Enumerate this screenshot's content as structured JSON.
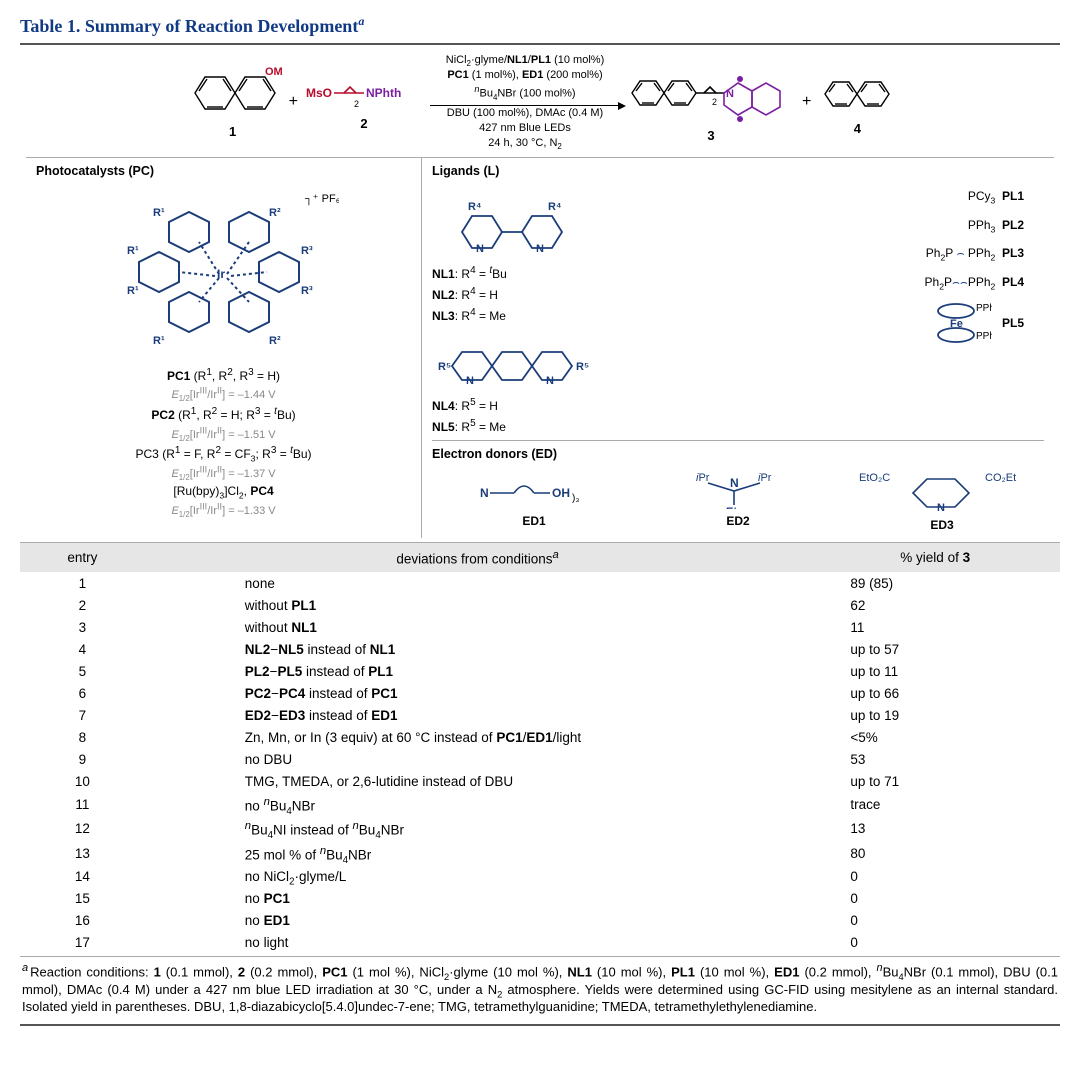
{
  "title_html": "Table 1. Summary of Reaction Development<sup><i>a</i></sup>",
  "reaction": {
    "conditions": [
      "NiCl<sub>2</sub>·glyme/<b>NL1</b>/<b>PL1</b> (10 mol%)",
      "<b>PC1</b> (1 mol%), <b>ED1</b> (200 mol%)",
      "<sup><i>n</i></sup>Bu<sub>4</sub>NBr (100 mol%)",
      "DBU (100 mol%), DMAc (0.4 M)",
      "427 nm Blue LEDs",
      "24 h, 30 °C, N<sub>2</sub>"
    ],
    "labels": {
      "sm1": "1",
      "sm2": "2",
      "prod": "3",
      "byp": "4"
    }
  },
  "photocatalysts": {
    "title": "Photocatalysts (PC)",
    "entries": [
      "<b>PC1</b> (R<sup>1</sup>, R<sup>2</sup>, R<sup>3</sup> = H)",
      "<span class='grey'><i>E</i><sub>1/2</sub>[Ir<sup>III</sup>/Ir<sup>II</sup>] = –1.44 V</span>",
      "<b>PC2</b> (R<sup>1</sup>, R<sup>2</sup> = H; R<sup>3</sup> = <sup><i>t</i></sup>Bu)",
      "<span class='grey'><i>E</i><sub>1/2</sub>[Ir<sup>III</sup>/Ir<sup>II</sup>] = –1.51 V</span>",
      "PC3 (R<sup>1</sup> = F, R<sup>2</sup> = CF<sub>3</sub>; R<sup>3</sup> = <sup><i>t</i></sup>Bu)",
      "<span class='grey'><i>E</i><sub>1/2</sub>[Ir<sup>III</sup>/Ir<sup>II</sup>] = –1.37 V</span>",
      "[Ru(bpy)<sub>3</sub>]Cl<sub>2</sub>, <b>PC4</b>",
      "<span class='grey'><i>E</i><sub>1/2</sub>[Ir<sup>III</sup>/Ir<sup>II</sup>] = –1.33 V</span>"
    ]
  },
  "ligands": {
    "title": "Ligands (L)",
    "n_ligands": [
      "<b>NL1</b>: R<sup>4</sup> = <sup><i>t</i></sup>Bu",
      "<b>NL2</b>: R<sup>4</sup> = H",
      "<b>NL3</b>: R<sup>4</sup> = Me",
      "<b>NL4</b>: R<sup>5</sup> = H",
      "<b>NL5</b>: R<sup>5</sup> = Me"
    ],
    "p_ligands": [
      "PCy<sub>3</sub> &nbsp;<b>PL1</b>",
      "PPh<sub>3</sub> &nbsp;<b>PL2</b>",
      "Ph<sub>2</sub>P&nbsp;<span class='dd'>⌢</span>&nbsp;PPh<sub>2</sub> &nbsp;<b>PL3</b>",
      "Ph<sub>2</sub>P<span class='dd'>⌢⌢</span>PPh<sub>2</sub> &nbsp;<b>PL4</b>",
      "<span class='dd'>(Fc)</span>(PPh<sub>2</sub>)<sub>2</sub> &nbsp;<b>PL5</b>"
    ]
  },
  "electron_donors": {
    "title": "Electron donors (ED)",
    "items": [
      {
        "formula": "N(⁀OH)<sub>3</sub>",
        "label": "ED1"
      },
      {
        "formula": "<sup><i>i</i></sup>Pr–N(Et)–<sup><i>i</i></sup>Pr",
        "label": "ED2"
      },
      {
        "formula": "EtO<sub>2</sub>C⌢N(H)⌢CO<sub>2</sub>Et",
        "label": "ED3"
      }
    ]
  },
  "table": {
    "headers": [
      "entry",
      "deviations from conditions<sup><i>a</i></sup>",
      "% yield of <b>3</b>"
    ],
    "rows": [
      {
        "entry": "1",
        "dev": "none",
        "yld": "89 (85)"
      },
      {
        "entry": "2",
        "dev": "without <b>PL1</b>",
        "yld": "62"
      },
      {
        "entry": "3",
        "dev": "without <b>NL1</b>",
        "yld": "11"
      },
      {
        "entry": "4",
        "dev": "<b>NL2</b>−<b>NL5</b> instead of <b>NL1</b>",
        "yld": "up to 57"
      },
      {
        "entry": "5",
        "dev": "<b>PL2</b>−<b>PL5</b> instead of <b>PL1</b>",
        "yld": "up to 11"
      },
      {
        "entry": "6",
        "dev": "<b>PC2</b>−<b>PC4</b> instead of <b>PC1</b>",
        "yld": "up to 66"
      },
      {
        "entry": "7",
        "dev": "<b>ED2</b>−<b>ED3</b> instead of <b>ED1</b>",
        "yld": "up to 19"
      },
      {
        "entry": "8",
        "dev": "Zn, Mn, or In (3 equiv) at 60 °C instead of <b>PC1</b>/<b>ED1</b>/light",
        "yld": "&lt;5%"
      },
      {
        "entry": "9",
        "dev": "no DBU",
        "yld": "53"
      },
      {
        "entry": "10",
        "dev": "TMG, TMEDA, or 2,6-lutidine instead of DBU",
        "yld": "up to 71"
      },
      {
        "entry": "11",
        "dev": "no <sup><i>n</i></sup>Bu<sub>4</sub>NBr",
        "yld": "trace"
      },
      {
        "entry": "12",
        "dev": "<sup><i>n</i></sup>Bu<sub>4</sub>NI instead of <sup><i>n</i></sup>Bu<sub>4</sub>NBr",
        "yld": "13"
      },
      {
        "entry": "13",
        "dev": "25 mol % of <sup><i>n</i></sup>Bu<sub>4</sub>NBr",
        "yld": "80"
      },
      {
        "entry": "14",
        "dev": "no NiCl<sub>2</sub>·glyme/L",
        "yld": "0"
      },
      {
        "entry": "15",
        "dev": "no <b>PC1</b>",
        "yld": "0"
      },
      {
        "entry": "16",
        "dev": "no <b>ED1</b>",
        "yld": "0"
      },
      {
        "entry": "17",
        "dev": "no light",
        "yld": "0"
      }
    ]
  },
  "footnote": "<sup class='a'>a</sup>Reaction conditions: <b>1</b> (0.1 mmol), <b>2</b> (0.2 mmol), <b>PC1</b> (1 mol %), NiCl<sub>2</sub>·glyme (10 mol %), <b>NL1</b> (10 mol %), <b>PL1</b> (10 mol %), <b>ED1</b> (0.2 mmol), <sup><i>n</i></sup>Bu<sub>4</sub>NBr (0.1 mmol), DBU (0.1 mmol), DMAc (0.4 M) under a 427 nm blue LED irradiation at 30 °C, under a N<sub>2</sub> atmosphere. Yields were determined using GC-FID using mesitylene as an internal standard. Isolated yield in parentheses. DBU, 1,8-diazabicyclo[5.4.0]undec-7-ene; TMG, tetramethylguanidine; TMEDA, tetramethylethylenediamine.",
  "colors": {
    "accent": "#113a84",
    "struct": "#1a3d7a",
    "red": "#b80c2c",
    "purple": "#7b1fa2",
    "grey": "#888888"
  }
}
